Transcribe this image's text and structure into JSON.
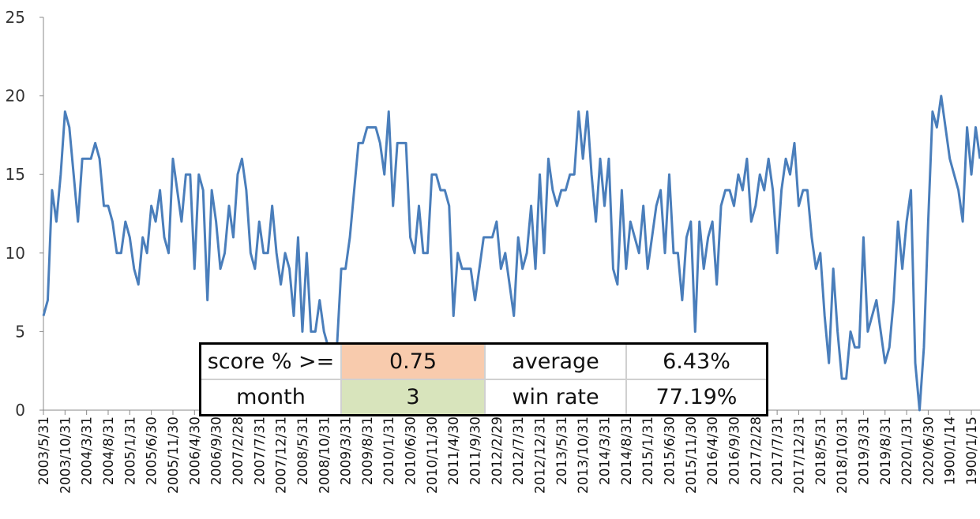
{
  "chart_data": {
    "type": "line",
    "color": "#4a7ebb",
    "categories": [
      "2003/5/31",
      null,
      null,
      null,
      null,
      "2003/10/31",
      null,
      null,
      null,
      null,
      "2004/3/31",
      null,
      null,
      null,
      null,
      "2004/8/31",
      null,
      null,
      null,
      null,
      "2005/1/31",
      null,
      null,
      null,
      null,
      "2005/6/30",
      null,
      null,
      null,
      null,
      "2005/11/30",
      null,
      null,
      null,
      null,
      "2006/4/30",
      null,
      null,
      null,
      null,
      "2006/9/30",
      null,
      null,
      null,
      null,
      "2007/2/28",
      null,
      null,
      null,
      null,
      "2007/7/31",
      null,
      null,
      null,
      null,
      "2007/12/31",
      null,
      null,
      null,
      null,
      "2008/5/31",
      null,
      null,
      null,
      null,
      "2008/10/31",
      null,
      null,
      null,
      null,
      "2009/3/31",
      null,
      null,
      null,
      null,
      "2009/8/31",
      null,
      null,
      null,
      null,
      "2010/1/31",
      null,
      null,
      null,
      null,
      "2010/6/30",
      null,
      null,
      null,
      null,
      "2010/11/30",
      null,
      null,
      null,
      null,
      "2011/4/30",
      null,
      null,
      null,
      null,
      "2011/9/30",
      null,
      null,
      null,
      null,
      "2012/2/29",
      null,
      null,
      null,
      null,
      "2012/7/31",
      null,
      null,
      null,
      null,
      "2012/12/31",
      null,
      null,
      null,
      null,
      "2013/5/31",
      null,
      null,
      null,
      null,
      "2013/10/31",
      null,
      null,
      null,
      null,
      "2014/3/31",
      null,
      null,
      null,
      null,
      "2014/8/31",
      null,
      null,
      null,
      null,
      "2015/1/31",
      null,
      null,
      null,
      null,
      "2015/6/30",
      null,
      null,
      null,
      null,
      "2015/11/30",
      null,
      null,
      null,
      null,
      "2016/4/30",
      null,
      null,
      null,
      null,
      "2016/9/30",
      null,
      null,
      null,
      null,
      "2017/2/28",
      null,
      null,
      null,
      null,
      "2017/7/31",
      null,
      null,
      null,
      null,
      "2017/12/31",
      null,
      null,
      null,
      null,
      "2018/5/31",
      null,
      null,
      null,
      null,
      "2018/10/31",
      null,
      null,
      null,
      null,
      "2019/3/31",
      null,
      null,
      null,
      null,
      "2019/8/31",
      null,
      null,
      null,
      null,
      "2020/1/31",
      null,
      null,
      null,
      null,
      "2020/6/30",
      null,
      null,
      null,
      null,
      "1900/1/14",
      null,
      null,
      null,
      null,
      "1900/1/15",
      null,
      null
    ],
    "values": [
      6,
      7,
      14,
      12,
      15,
      19,
      18,
      15,
      12,
      16,
      16,
      16,
      17,
      16,
      13,
      13,
      12,
      10,
      10,
      12,
      11,
      9,
      8,
      11,
      10,
      13,
      12,
      14,
      11,
      10,
      16,
      14,
      12,
      15,
      15,
      9,
      15,
      14,
      7,
      14,
      12,
      9,
      10,
      13,
      11,
      15,
      16,
      14,
      10,
      9,
      12,
      10,
      10,
      13,
      10,
      8,
      10,
      9,
      6,
      11,
      5,
      10,
      5,
      5,
      7,
      5,
      4,
      4,
      4,
      9,
      9,
      11,
      14,
      17,
      17,
      18,
      18,
      18,
      17,
      15,
      19,
      13,
      17,
      17,
      17,
      11,
      10,
      13,
      10,
      10,
      15,
      15,
      14,
      14,
      13,
      6,
      10,
      9,
      9,
      9,
      7,
      9,
      11,
      11,
      11,
      12,
      9,
      10,
      8,
      6,
      11,
      9,
      10,
      13,
      9,
      15,
      10,
      16,
      14,
      13,
      14,
      14,
      15,
      15,
      19,
      16,
      19,
      15,
      12,
      16,
      13,
      16,
      9,
      8,
      14,
      9,
      12,
      11,
      10,
      13,
      9,
      11,
      13,
      14,
      10,
      15,
      10,
      10,
      7,
      11,
      12,
      5,
      12,
      9,
      11,
      12,
      8,
      13,
      14,
      14,
      13,
      15,
      14,
      16,
      12,
      13,
      15,
      14,
      16,
      14,
      10,
      14,
      16,
      15,
      17,
      13,
      14,
      14,
      11,
      9,
      10,
      6,
      3,
      9,
      5,
      2,
      2,
      5,
      4,
      4,
      11,
      5,
      6,
      7,
      5,
      3,
      4,
      7,
      12,
      9,
      12,
      14,
      3,
      0,
      4,
      12,
      19,
      18,
      20,
      18,
      16,
      15,
      14,
      12,
      18,
      15,
      18,
      16
    ],
    "ylim": [
      0,
      25
    ],
    "yticks": [
      0,
      5,
      10,
      15,
      20,
      25
    ],
    "grid": false
  },
  "table": {
    "rows": [
      [
        "score % >=",
        "0.75",
        "average",
        "6.43%"
      ],
      [
        "month",
        "3",
        "win rate",
        "77.19%"
      ]
    ]
  }
}
